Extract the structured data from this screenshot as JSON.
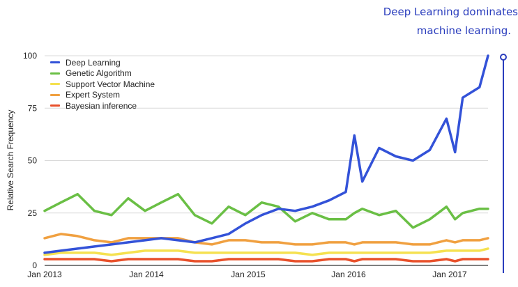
{
  "annotation": {
    "line1": "Deep Learning dominates",
    "line2": "machine learning."
  },
  "chart_data": {
    "type": "line",
    "title": "",
    "xlabel": "",
    "ylabel": "Relative Search Frequency",
    "ylim": [
      0,
      100
    ],
    "yticks": [
      "0",
      "25",
      "50",
      "75",
      "100"
    ],
    "xticks": [
      "Jan 2013",
      "Jan 2014",
      "Jan 2015",
      "Jan 2016",
      "Jan 2017"
    ],
    "x": [
      "2013-01",
      "2013-03",
      "2013-05",
      "2013-07",
      "2013-09",
      "2013-11",
      "2014-01",
      "2014-03",
      "2014-05",
      "2014-07",
      "2014-09",
      "2014-11",
      "2015-01",
      "2015-03",
      "2015-05",
      "2015-07",
      "2015-09",
      "2015-11",
      "2016-01",
      "2016-02",
      "2016-03",
      "2016-05",
      "2016-07",
      "2016-09",
      "2016-11",
      "2017-01",
      "2017-02",
      "2017-03",
      "2017-05",
      "2017-06"
    ],
    "grid": true,
    "legend_position": "top-left",
    "series": [
      {
        "name": "Deep Learning",
        "color": "#3352d8",
        "values": [
          6,
          7,
          8,
          9,
          10,
          11,
          12,
          13,
          12,
          11,
          13,
          15,
          20,
          24,
          27,
          26,
          28,
          31,
          35,
          62,
          40,
          56,
          52,
          50,
          55,
          70,
          54,
          80,
          85,
          100
        ]
      },
      {
        "name": "Genetic Algorithm",
        "color": "#6abf45",
        "values": [
          26,
          30,
          34,
          26,
          24,
          32,
          26,
          30,
          34,
          24,
          20,
          28,
          24,
          30,
          28,
          21,
          25,
          22,
          22,
          25,
          27,
          24,
          26,
          18,
          22,
          28,
          22,
          25,
          27,
          27
        ]
      },
      {
        "name": "Support Vector Machine",
        "color": "#f5e150",
        "values": [
          5,
          6,
          6,
          6,
          5,
          6,
          7,
          7,
          7,
          6,
          6,
          6,
          6,
          6,
          6,
          6,
          5,
          6,
          6,
          6,
          6,
          6,
          6,
          6,
          6,
          7,
          7,
          7,
          7,
          8
        ]
      },
      {
        "name": "Expert System",
        "color": "#f0a040",
        "values": [
          13,
          15,
          14,
          12,
          11,
          13,
          13,
          13,
          13,
          11,
          10,
          12,
          12,
          11,
          11,
          10,
          10,
          11,
          11,
          10,
          11,
          11,
          11,
          10,
          10,
          12,
          11,
          12,
          12,
          13
        ]
      },
      {
        "name": "Bayesian inference",
        "color": "#e8502a",
        "values": [
          3,
          3,
          3,
          3,
          2,
          3,
          3,
          3,
          3,
          2,
          2,
          3,
          3,
          3,
          3,
          2,
          2,
          3,
          3,
          2,
          3,
          3,
          3,
          2,
          2,
          3,
          2,
          3,
          3,
          3
        ]
      }
    ]
  }
}
